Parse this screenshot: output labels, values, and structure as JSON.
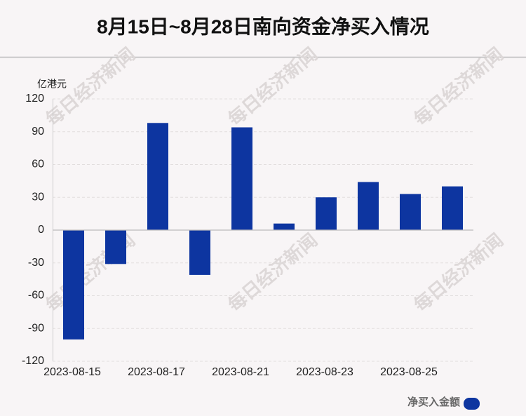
{
  "chart_data": {
    "type": "bar",
    "title": "8月15日~8月28日南向资金净买入情况",
    "y_label": "亿港元",
    "watermark": "每日经济新闻",
    "categories": [
      "2023-08-15",
      null,
      "2023-08-17",
      null,
      "2023-08-21",
      null,
      "2023-08-23",
      null,
      "2023-08-25",
      null
    ],
    "series": [
      {
        "name": "净买入金额",
        "color": "#0d35a0",
        "values": [
          -100,
          -31,
          98,
          -41,
          94,
          6,
          30,
          44,
          33,
          40
        ]
      }
    ],
    "ylim": [
      -120,
      120
    ],
    "yticks": [
      -120,
      -90,
      -60,
      -30,
      0,
      30,
      60,
      90,
      120
    ],
    "grid": true,
    "legend": "bottom-right"
  }
}
